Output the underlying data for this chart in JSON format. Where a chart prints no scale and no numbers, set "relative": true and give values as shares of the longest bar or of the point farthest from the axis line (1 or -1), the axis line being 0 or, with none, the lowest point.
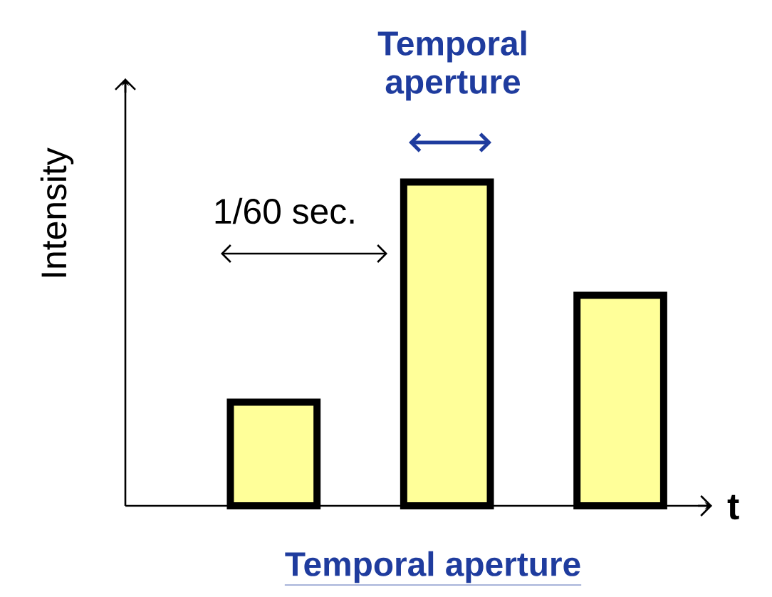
{
  "chart_data": {
    "type": "bar",
    "relative": true,
    "categories": [
      null,
      null,
      null
    ],
    "values": [
      0.32,
      1,
      0.65
    ],
    "color": "#ffff99",
    "xlabel": "t",
    "ylabel": "Intensity",
    "annotations": [
      "1/60 sec.",
      "Temporal aperture",
      "Temporal aperture"
    ]
  }
}
